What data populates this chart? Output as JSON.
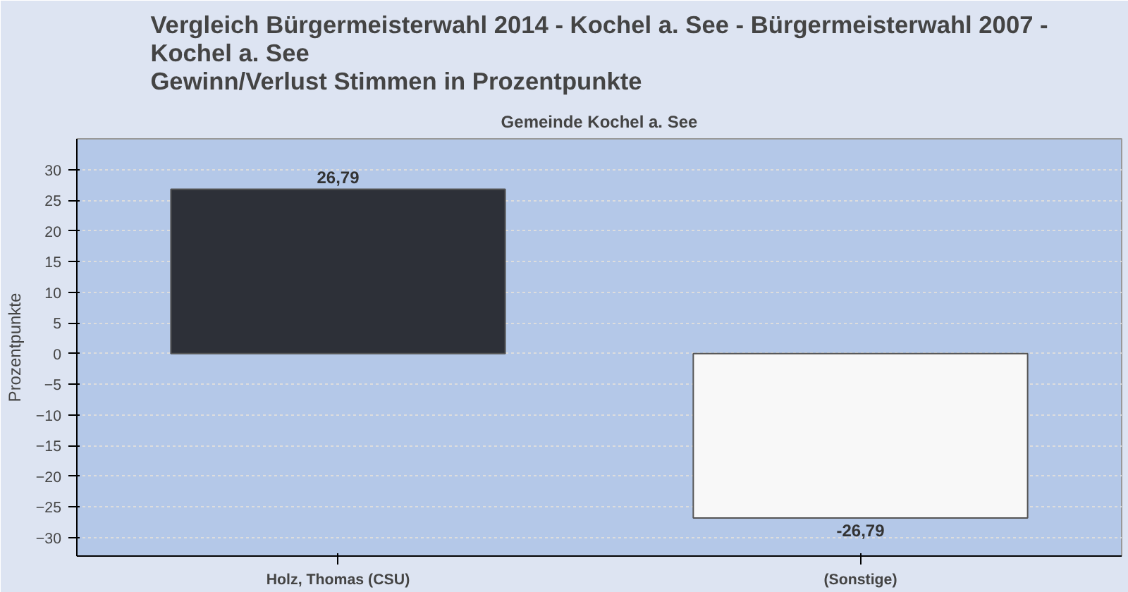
{
  "chart_data": {
    "type": "bar",
    "title": "Vergleich Bürgermeisterwahl 2014 - Kochel a. See - Bürgermeisterwahl 2007 -\nKochel a. See\nGewinn/Verlust Stimmen in Prozentpunkte",
    "subtitle": "Gemeinde Kochel a. See",
    "ylabel": "Prozentpunkte",
    "categories": [
      "Holz, Thomas (CSU)",
      "(Sonstige)"
    ],
    "values": [
      26.79,
      -26.79
    ],
    "colors": [
      "#2d3038",
      "#f8f8f8"
    ],
    "value_labels": [
      "26,79",
      "-26,79"
    ],
    "ylim": [
      -33,
      35
    ],
    "yticks": [
      -30,
      -25,
      -20,
      -15,
      -10,
      -5,
      0,
      5,
      10,
      15,
      20,
      25,
      30
    ],
    "grid": "y"
  }
}
